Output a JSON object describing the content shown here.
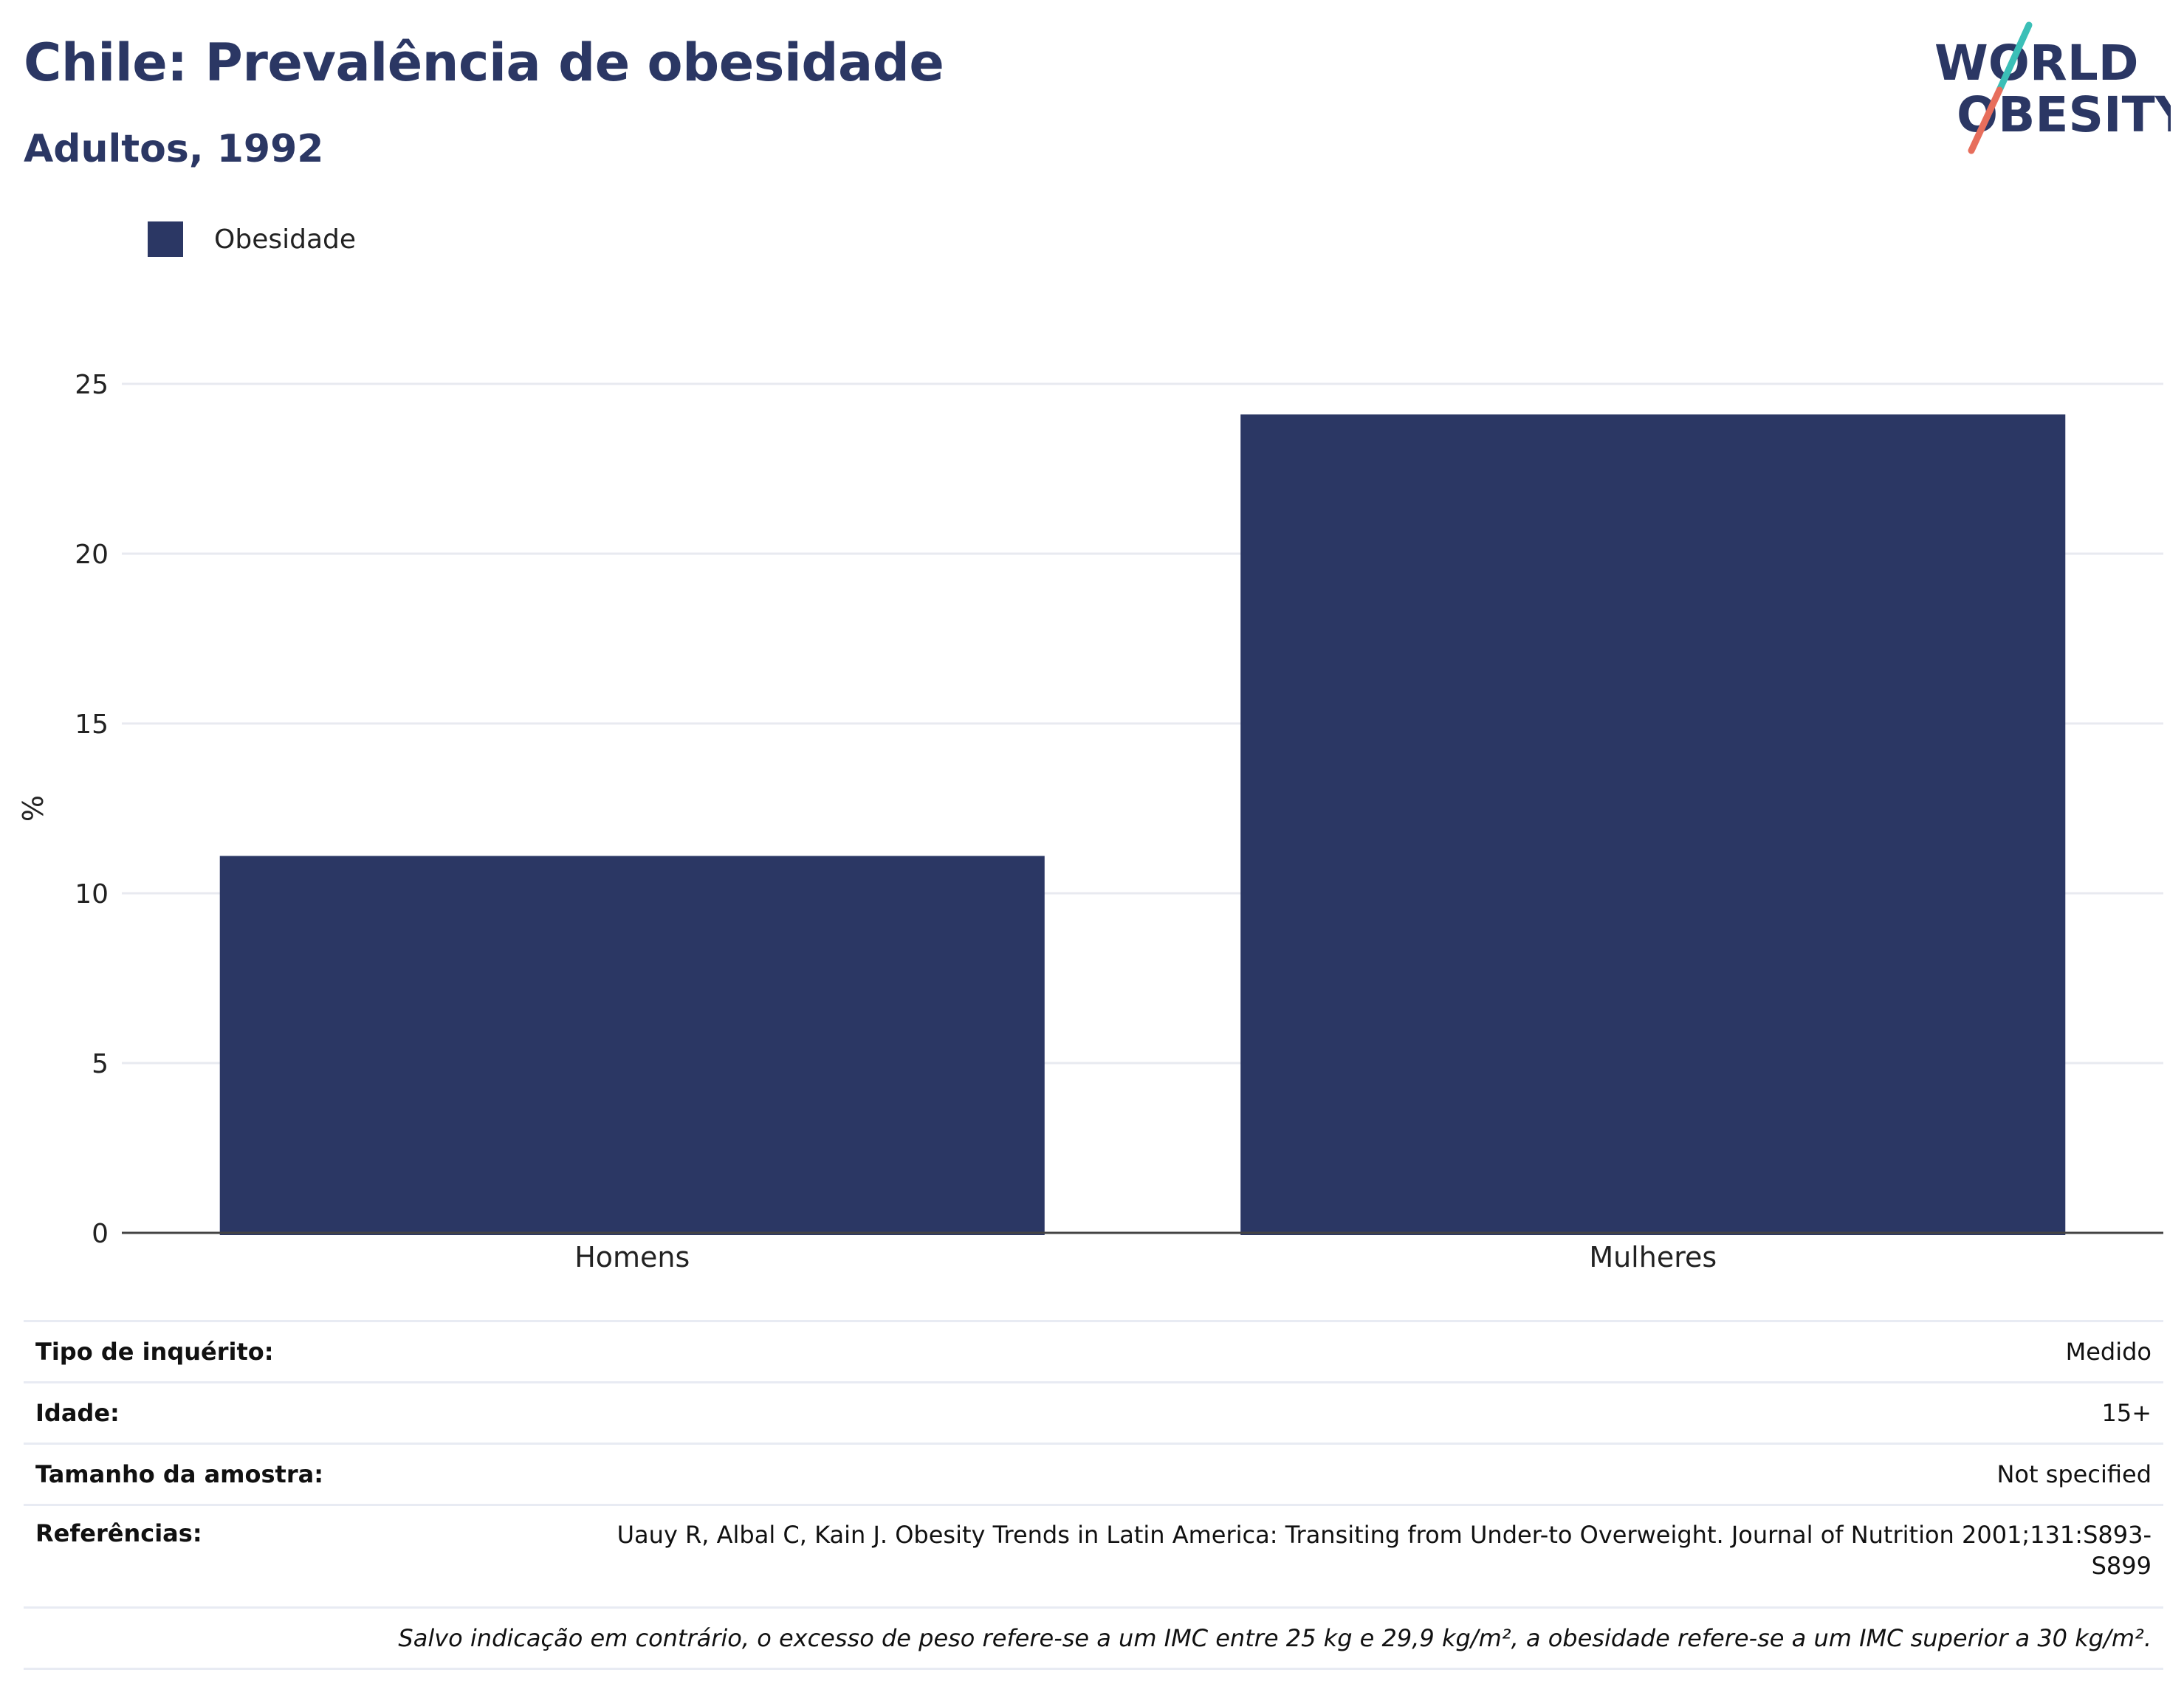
{
  "header": {
    "title": "Chile: Prevalência de obesidade",
    "subtitle": "Adultos, 1992"
  },
  "logo": {
    "line1": "WORLD",
    "line2": "OBESITY",
    "colors": {
      "text": "#2b3764",
      "slash_teal": "#3bbfb7",
      "slash_coral": "#e76e5c"
    }
  },
  "chart_data": {
    "type": "bar",
    "categories": [
      "Homens",
      "Mulheres"
    ],
    "series": [
      {
        "name": "Obesidade",
        "values": [
          11.1,
          24.1
        ],
        "color": "#2b3764"
      }
    ],
    "title": "Chile: Prevalência de obesidade",
    "subtitle": "Adultos, 1992",
    "xlabel": "",
    "ylabel": "%",
    "ylim": [
      0,
      25
    ],
    "yticks": [
      0,
      5,
      10,
      15,
      20,
      25
    ],
    "grid": true,
    "legend_position": "top-left"
  },
  "details": {
    "rows": [
      {
        "key": "Tipo de inquérito:",
        "value": "Medido"
      },
      {
        "key": "Idade:",
        "value": "15+"
      },
      {
        "key": "Tamanho da amostra:",
        "value": "Not specified"
      },
      {
        "key": "Referências:",
        "value": "Uauy R, Albal C, Kain J. Obesity Trends in Latin America: Transiting from Under-to Overweight. Journal of Nutrition 2001;131:S893-S899"
      }
    ],
    "note": "Salvo indicação em contrário, o excesso de peso refere-se a um IMC entre 25 kg e 29,9 kg/m², a obesidade refere-se a um IMC superior a 30 kg/m²."
  }
}
